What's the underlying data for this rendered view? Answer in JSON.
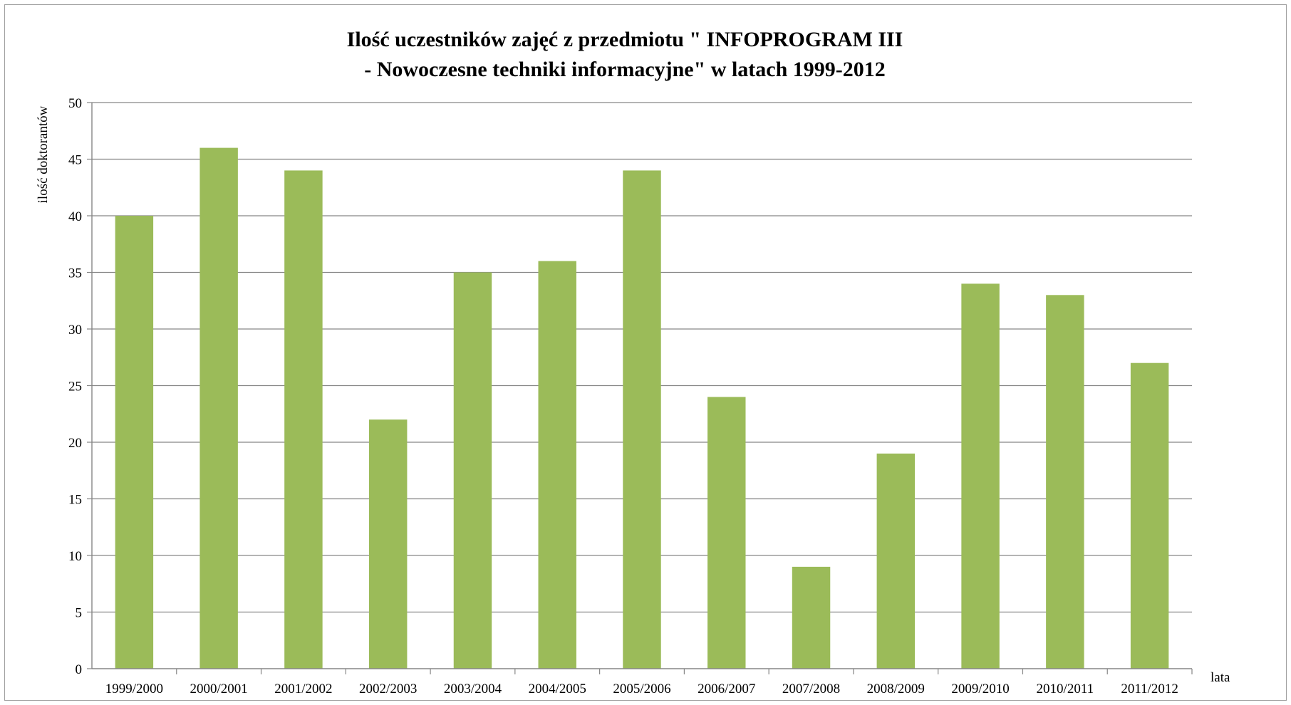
{
  "chart_data": {
    "type": "bar",
    "title": "Ilość uczestników  zajęć  z przedmiotu  \" INFOPROGRAM III",
    "subtitle": "- Nowoczesne techniki informacyjne\"  w latach 1999-2012",
    "xlabel": "lata",
    "ylabel": "ilość  doktorantów",
    "categories": [
      "1999/2000",
      "2000/2001",
      "2001/2002",
      "2002/2003",
      "2003/2004",
      "2004/2005",
      "2005/2006",
      "2006/2007",
      "2007/2008",
      "2008/2009",
      "2009/2010",
      "2010/2011",
      "2011/2012"
    ],
    "values": [
      40,
      46,
      44,
      22,
      35,
      36,
      44,
      24,
      9,
      19,
      34,
      33,
      27
    ],
    "ylim": [
      0,
      50
    ],
    "yticks": [
      "0",
      "5",
      "10",
      "15",
      "20",
      "25",
      "30",
      "35",
      "40",
      "45",
      "50"
    ],
    "grid": true,
    "legend": "none",
    "bar_color": "#9bbb59",
    "gridline_color": "#868686"
  }
}
